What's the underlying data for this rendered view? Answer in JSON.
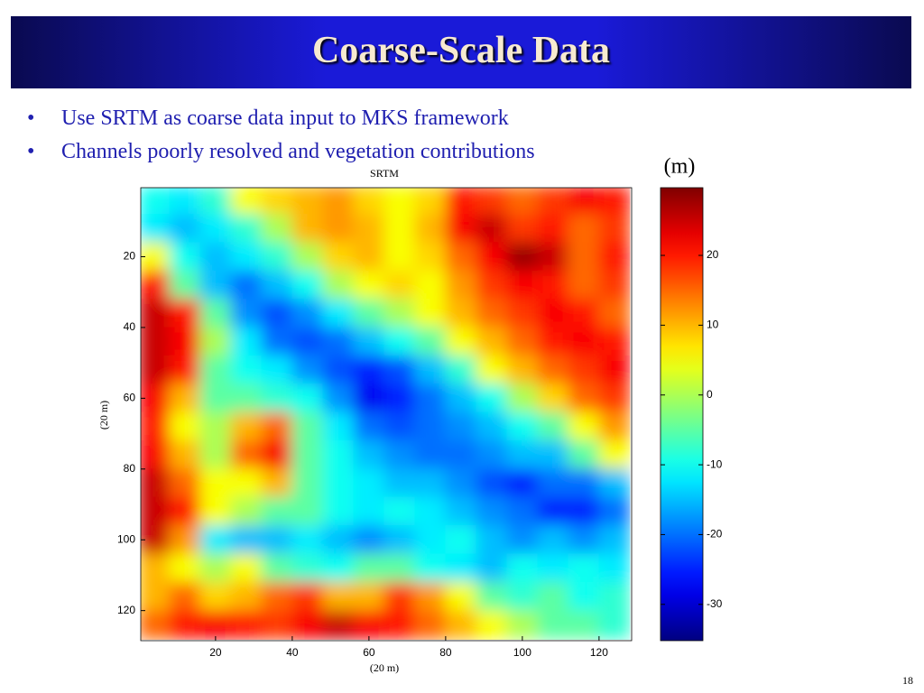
{
  "slide": {
    "title": "Coarse-Scale Data",
    "bullets": [
      "Use SRTM as coarse data input to MKS framework",
      "Channels poorly resolved and vegetation contributions"
    ],
    "page_number": "18"
  },
  "chart_data": {
    "type": "heatmap",
    "title": "SRTM",
    "xlabel": "(20 m)",
    "ylabel": "(20 m)",
    "x": [
      4,
      12,
      20,
      28,
      36,
      44,
      52,
      60,
      68,
      76,
      84,
      92,
      100,
      108,
      116,
      124
    ],
    "y": [
      4,
      12,
      20,
      28,
      36,
      44,
      52,
      60,
      68,
      76,
      84,
      92,
      100,
      108,
      116,
      124
    ],
    "z": [
      [
        -10,
        -12,
        -8,
        5,
        8,
        10,
        12,
        8,
        5,
        8,
        20,
        18,
        15,
        18,
        22,
        20
      ],
      [
        -12,
        -15,
        -12,
        -8,
        0,
        10,
        12,
        10,
        5,
        10,
        22,
        25,
        18,
        20,
        15,
        18
      ],
      [
        5,
        -10,
        -15,
        -12,
        -8,
        0,
        8,
        10,
        5,
        8,
        15,
        22,
        28,
        25,
        15,
        20
      ],
      [
        20,
        -5,
        -15,
        -20,
        -15,
        -10,
        0,
        5,
        8,
        5,
        12,
        18,
        22,
        20,
        15,
        18
      ],
      [
        25,
        20,
        -5,
        -18,
        -22,
        -18,
        -12,
        -5,
        0,
        5,
        10,
        15,
        18,
        22,
        20,
        15
      ],
      [
        25,
        22,
        0,
        -12,
        -20,
        -22,
        -20,
        -15,
        -10,
        -5,
        5,
        10,
        15,
        20,
        22,
        20
      ],
      [
        25,
        20,
        -5,
        -10,
        -12,
        -18,
        -22,
        -25,
        -22,
        -15,
        -8,
        5,
        10,
        15,
        18,
        22
      ],
      [
        22,
        10,
        -5,
        -5,
        -8,
        -10,
        -18,
        -28,
        -25,
        -20,
        -15,
        -10,
        0,
        8,
        15,
        18
      ],
      [
        20,
        5,
        0,
        10,
        15,
        -5,
        -12,
        -20,
        -22,
        -20,
        -18,
        -15,
        -10,
        -5,
        5,
        12
      ],
      [
        22,
        10,
        0,
        15,
        22,
        -5,
        -10,
        -15,
        -18,
        -20,
        -20,
        -18,
        -15,
        -15,
        -5,
        5
      ],
      [
        25,
        15,
        5,
        5,
        10,
        -5,
        -10,
        -12,
        -15,
        -15,
        -18,
        -22,
        -25,
        -20,
        -20,
        -15
      ],
      [
        25,
        20,
        5,
        0,
        -5,
        -5,
        -10,
        -12,
        -10,
        -12,
        -15,
        -18,
        -20,
        -25,
        -25,
        -20
      ],
      [
        25,
        12,
        -12,
        -15,
        -15,
        -12,
        -15,
        -18,
        -15,
        -12,
        -10,
        -15,
        -18,
        -15,
        -18,
        -15
      ],
      [
        10,
        5,
        0,
        5,
        -5,
        -8,
        -10,
        -5,
        -5,
        -10,
        -12,
        -15,
        -10,
        -12,
        -10,
        -12
      ],
      [
        10,
        15,
        8,
        10,
        15,
        18,
        10,
        10,
        18,
        12,
        5,
        -5,
        -8,
        -5,
        -10,
        -8
      ],
      [
        15,
        20,
        22,
        20,
        18,
        22,
        25,
        22,
        20,
        15,
        10,
        5,
        0,
        -5,
        -5,
        -8
      ]
    ],
    "xlim": [
      0.5,
      128.5
    ],
    "ylim": [
      128.5,
      0.5
    ],
    "xticks": [
      20,
      40,
      60,
      80,
      100,
      120
    ],
    "yticks": [
      20,
      40,
      60,
      80,
      100,
      120
    ],
    "colorbar": {
      "label": "(m)",
      "clim": [
        -35.2,
        29.7
      ],
      "ticks": [
        20,
        10,
        0,
        -10,
        -20,
        -30
      ]
    }
  }
}
